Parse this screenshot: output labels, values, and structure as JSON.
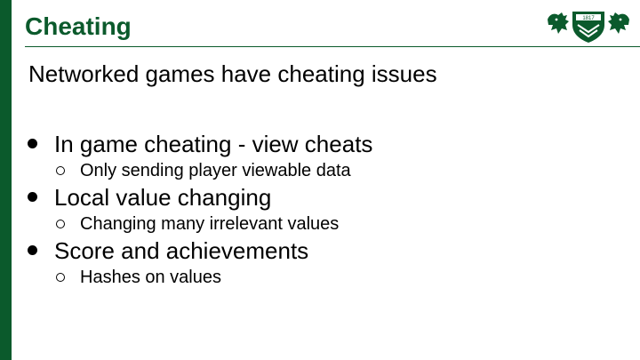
{
  "slide": {
    "title": "Cheating",
    "intro": "Networked games have cheating issues",
    "logo_year": "1817",
    "bullets": [
      {
        "text": "In game cheating - view cheats",
        "sub": [
          "Only sending player viewable data"
        ]
      },
      {
        "text": "Local value changing",
        "sub": [
          "Changing many irrelevant values"
        ]
      },
      {
        "text": "Score and achievements",
        "sub": [
          "Hashes on values"
        ]
      }
    ]
  },
  "colors": {
    "brand_green": "#0b5a2c",
    "text": "#000000",
    "background": "#ffffff"
  }
}
